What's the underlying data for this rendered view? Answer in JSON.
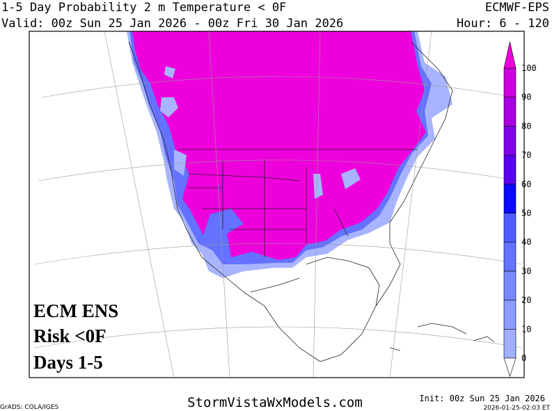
{
  "header": {
    "title": "1-5 Day Probability 2 m Temperature < 0F",
    "model": "ECMWF-EPS",
    "valid": "Valid: 00z Sun 25 Jan 2026 - 00z Fri 30 Jan 2026",
    "hours": "Hour: 6 - 120"
  },
  "overlay": {
    "lines": [
      "ECM ENS",
      "Risk <0F",
      "Days 1-5"
    ]
  },
  "colorbar": {
    "levels": [
      0,
      10,
      20,
      30,
      40,
      50,
      60,
      70,
      80,
      90,
      100
    ],
    "colors": [
      "#a0b0ff",
      "#8c9cff",
      "#7a88ff",
      "#6472ff",
      "#4e5cff",
      "#0a0aff",
      "#5a00f0",
      "#8200ea",
      "#a800e0",
      "#cc00dc"
    ],
    "over_color": "#ee00dc",
    "under_color": "#ffffff"
  },
  "footer": {
    "credit": "GrADS: COLA/IGES",
    "site": "StormVistaWxModels.com",
    "init": "Init: 00z Sun 25 Jan 2026",
    "timestamp": "2026-01-25-02:03 ET"
  }
}
